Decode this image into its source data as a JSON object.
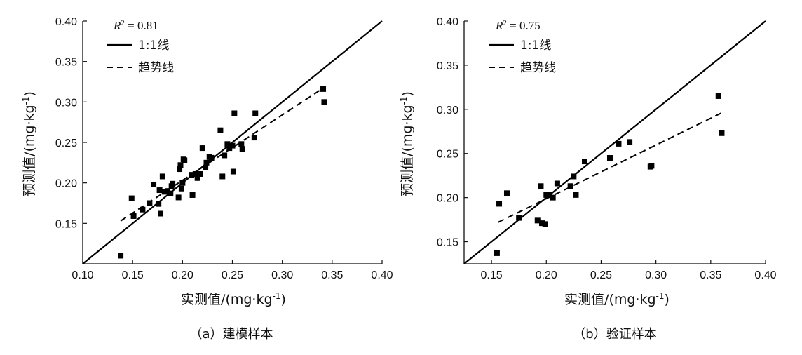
{
  "chart_data": [
    {
      "type": "scatter",
      "caption": "（a）建模样本",
      "xlabel": "实测值/(mg·kg",
      "ylabel": "预测值/(mg·kg",
      "unit_superscript": "-1",
      "unit_close": ")",
      "xlim": [
        0.1,
        0.4
      ],
      "ylim": [
        0.1,
        0.4
      ],
      "xticks": [
        "0.10",
        "0.15",
        "0.20",
        "0.25",
        "0.30",
        "0.35",
        "0.40"
      ],
      "yticks": [
        "0.15",
        "0.20",
        "0.25",
        "0.30",
        "0.35",
        "0.40"
      ],
      "r2": {
        "symbol": "R",
        "exponent": "2",
        "text": " = 0.81"
      },
      "legend": {
        "line": "1:1线",
        "trend": "趋势线"
      },
      "trend_line": {
        "x": [
          0.138,
          0.342
        ],
        "y": [
          0.153,
          0.318
        ]
      },
      "points": [
        [
          0.138,
          0.11
        ],
        [
          0.149,
          0.181
        ],
        [
          0.151,
          0.159
        ],
        [
          0.16,
          0.167
        ],
        [
          0.167,
          0.175
        ],
        [
          0.171,
          0.198
        ],
        [
          0.176,
          0.174
        ],
        [
          0.177,
          0.191
        ],
        [
          0.178,
          0.162
        ],
        [
          0.18,
          0.208
        ],
        [
          0.182,
          0.189
        ],
        [
          0.185,
          0.19
        ],
        [
          0.188,
          0.187
        ],
        [
          0.189,
          0.196
        ],
        [
          0.19,
          0.199
        ],
        [
          0.196,
          0.182
        ],
        [
          0.197,
          0.217
        ],
        [
          0.198,
          0.222
        ],
        [
          0.199,
          0.193
        ],
        [
          0.2,
          0.2
        ],
        [
          0.201,
          0.229
        ],
        [
          0.202,
          0.228
        ],
        [
          0.209,
          0.21
        ],
        [
          0.21,
          0.185
        ],
        [
          0.213,
          0.211
        ],
        [
          0.215,
          0.206
        ],
        [
          0.218,
          0.211
        ],
        [
          0.22,
          0.243
        ],
        [
          0.223,
          0.219
        ],
        [
          0.224,
          0.225
        ],
        [
          0.227,
          0.232
        ],
        [
          0.229,
          0.231
        ],
        [
          0.238,
          0.265
        ],
        [
          0.24,
          0.208
        ],
        [
          0.242,
          0.234
        ],
        [
          0.245,
          0.248
        ],
        [
          0.247,
          0.243
        ],
        [
          0.25,
          0.246
        ],
        [
          0.251,
          0.214
        ],
        [
          0.252,
          0.286
        ],
        [
          0.259,
          0.248
        ],
        [
          0.26,
          0.242
        ],
        [
          0.272,
          0.256
        ],
        [
          0.273,
          0.286
        ],
        [
          0.341,
          0.316
        ],
        [
          0.342,
          0.3
        ]
      ]
    },
    {
      "type": "scatter",
      "caption": "（b）验证样本",
      "xlabel": "实测值/(mg·kg",
      "ylabel": "预测值/(mg·kg",
      "unit_superscript": "-1",
      "unit_close": ")",
      "xlim": [
        0.125,
        0.4
      ],
      "ylim": [
        0.125,
        0.4
      ],
      "xticks": [
        "0.15",
        "0.20",
        "0.25",
        "0.30",
        "0.35",
        "0.40"
      ],
      "yticks": [
        "0.15",
        "0.20",
        "0.25",
        "0.30",
        "0.35",
        "0.40"
      ],
      "r2": {
        "symbol": "R",
        "exponent": "2",
        "text": " = 0.75"
      },
      "legend": {
        "line": "1:1线",
        "trend": "趋势线"
      },
      "trend_line": {
        "x": [
          0.156,
          0.36
        ],
        "y": [
          0.172,
          0.296
        ]
      },
      "points": [
        [
          0.155,
          0.137
        ],
        [
          0.157,
          0.193
        ],
        [
          0.164,
          0.205
        ],
        [
          0.175,
          0.177
        ],
        [
          0.192,
          0.174
        ],
        [
          0.195,
          0.213
        ],
        [
          0.196,
          0.171
        ],
        [
          0.199,
          0.17
        ],
        [
          0.2,
          0.203
        ],
        [
          0.203,
          0.203
        ],
        [
          0.206,
          0.2
        ],
        [
          0.21,
          0.216
        ],
        [
          0.222,
          0.213
        ],
        [
          0.225,
          0.224
        ],
        [
          0.227,
          0.203
        ],
        [
          0.235,
          0.241
        ],
        [
          0.258,
          0.245
        ],
        [
          0.266,
          0.261
        ],
        [
          0.276,
          0.263
        ],
        [
          0.295,
          0.235
        ],
        [
          0.296,
          0.236
        ],
        [
          0.357,
          0.315
        ],
        [
          0.36,
          0.273
        ]
      ]
    }
  ]
}
